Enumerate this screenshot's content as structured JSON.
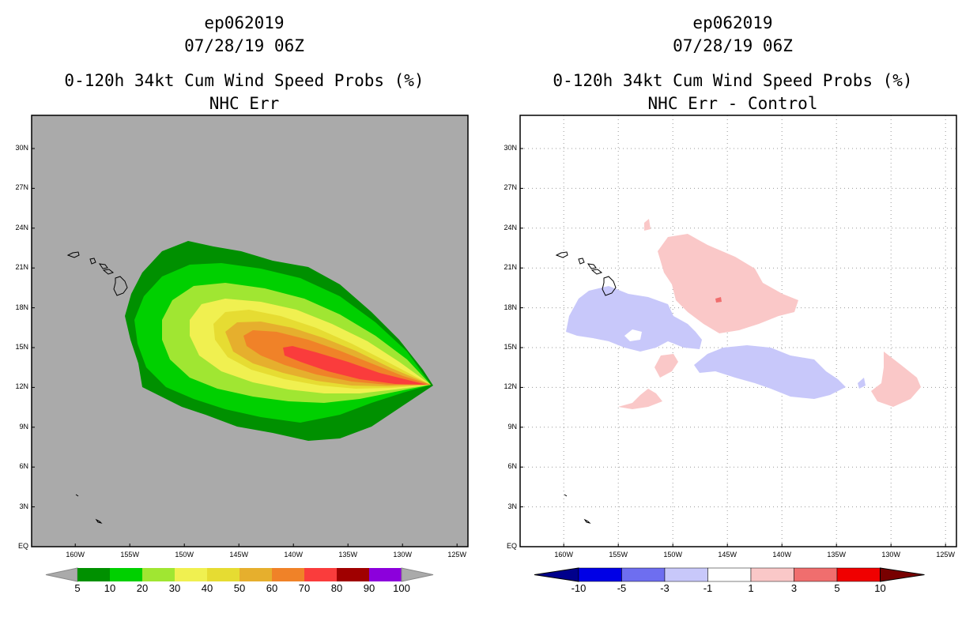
{
  "chart_data": [
    {
      "type": "heatmap",
      "storm_id": "ep062019",
      "datetime": "07/28/19 06Z",
      "title": "0-120h 34kt Cum Wind Speed Probs (%)",
      "subtitle": "NHC Err",
      "lon_ticks": [
        "160W",
        "155W",
        "150W",
        "145W",
        "140W",
        "135W",
        "130W",
        "125W"
      ],
      "lat_ticks": [
        "EQ",
        "3N",
        "6N",
        "9N",
        "12N",
        "15N",
        "18N",
        "21N",
        "24N",
        "27N",
        "30N"
      ],
      "xlim_lon": [
        -164,
        -124
      ],
      "ylim_lat": [
        0,
        32.5
      ],
      "grid": false,
      "colorbar": {
        "levels": [
          "5",
          "10",
          "20",
          "30",
          "40",
          "50",
          "60",
          "70",
          "80",
          "90",
          "100"
        ],
        "colors": [
          "#009000",
          "#00d000",
          "#a0e632",
          "#f0f050",
          "#e6dc32",
          "#e6af2d",
          "#f08228",
          "#fa3c3c",
          "#a00000",
          "#8c00dc"
        ]
      },
      "contours": [
        {
          "level": 5,
          "color": "#009000"
        },
        {
          "level": 10,
          "color": "#00d000"
        },
        {
          "level": 20,
          "color": "#a0e632"
        },
        {
          "level": 30,
          "color": "#f0f050"
        },
        {
          "level": 40,
          "color": "#e6dc32"
        },
        {
          "level": 50,
          "color": "#e6af2d"
        },
        {
          "level": 60,
          "color": "#f08228"
        },
        {
          "level": 70,
          "color": "#fa3c3c"
        }
      ]
    },
    {
      "type": "heatmap",
      "storm_id": "ep062019",
      "datetime": "07/28/19 06Z",
      "title": "0-120h 34kt Cum Wind Speed Probs (%)",
      "subtitle": "NHC Err - Control",
      "lon_ticks": [
        "160W",
        "155W",
        "150W",
        "145W",
        "140W",
        "135W",
        "130W",
        "125W"
      ],
      "lat_ticks": [
        "EQ",
        "3N",
        "6N",
        "9N",
        "12N",
        "15N",
        "18N",
        "21N",
        "24N",
        "27N",
        "30N"
      ],
      "xlim_lon": [
        -164,
        -124
      ],
      "ylim_lat": [
        0,
        32.5
      ],
      "grid": true,
      "colorbar": {
        "levels": [
          "-10",
          "-5",
          "-3",
          "-1",
          "1",
          "3",
          "5",
          "10"
        ],
        "colors": [
          "#0000e6",
          "#6e6ef0",
          "#c8c8fa",
          "#ffffff",
          "#fac8c8",
          "#f06e6e",
          "#f00000"
        ],
        "low_color": "#00008c",
        "high_color": "#780000"
      }
    }
  ]
}
